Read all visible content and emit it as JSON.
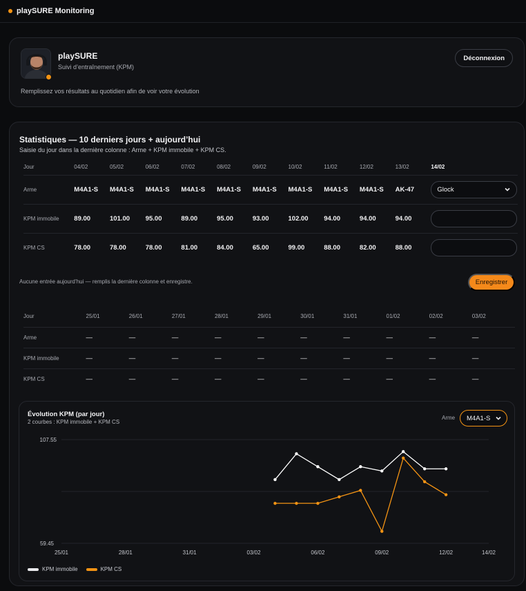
{
  "app": {
    "title": "playSURE Monitoring"
  },
  "profile": {
    "name": "playSURE",
    "subtitle": "Suivi d’entraînement (KPM)",
    "hint": "Remplissez vos résultats au quotidien afin de voir votre évolution",
    "logout_label": "Déconnexion"
  },
  "stats": {
    "title": "Statistiques — 10 derniers jours + aujourd’hui",
    "subtitle": "Saisie du jour dans la dernière colonne : Arme + KPM immobile + KPM CS.",
    "row_labels": {
      "day": "Jour",
      "weapon": "Arme",
      "kpm_static": "KPM immobile",
      "kpm_cs": "KPM CS"
    },
    "table1": {
      "days": [
        "04/02",
        "05/02",
        "06/02",
        "07/02",
        "08/02",
        "09/02",
        "10/02",
        "11/02",
        "12/02",
        "13/02"
      ],
      "today": "14/02",
      "weapons": [
        "M4A1-S",
        "M4A1-S",
        "M4A1-S",
        "M4A1-S",
        "M4A1-S",
        "M4A1-S",
        "M4A1-S",
        "M4A1-S",
        "M4A1-S",
        "AK-47"
      ],
      "kpm_static": [
        "89.00",
        "101.00",
        "95.00",
        "89.00",
        "95.00",
        "93.00",
        "102.00",
        "94.00",
        "94.00",
        "94.00"
      ],
      "kpm_cs": [
        "78.00",
        "78.00",
        "78.00",
        "81.00",
        "84.00",
        "65.00",
        "99.00",
        "88.00",
        "82.00",
        "88.00"
      ],
      "today_weapon": "Glock",
      "today_kpm_static": "",
      "today_kpm_cs": ""
    },
    "message": "Aucune entrée aujourd’hui — remplis la dernière colonne et enregistre.",
    "save_label": "Enregistrer",
    "table2": {
      "days": [
        "25/01",
        "26/01",
        "27/01",
        "28/01",
        "29/01",
        "30/01",
        "31/01",
        "01/02",
        "02/02",
        "03/02"
      ],
      "empty": "—"
    }
  },
  "chart": {
    "title": "Évolution KPM (par jour)",
    "subtitle": "2 courbes : KPM immobile + KPM CS",
    "weapon_label": "Arme",
    "weapon_value": "M4A1-S"
  },
  "colors": {
    "accent": "#f5891a",
    "series_static": "#ffffff",
    "series_cs": "#f39314"
  },
  "chart_data": {
    "type": "line",
    "ylim": [
      59.45,
      107.55
    ],
    "y_tick_labels": [
      "107.55",
      "59.45"
    ],
    "x_ticks": [
      "25/01",
      "28/01",
      "31/01",
      "03/02",
      "06/02",
      "09/02",
      "12/02",
      "14/02"
    ],
    "x_dates": [
      "25/01",
      "26/01",
      "27/01",
      "28/01",
      "29/01",
      "30/01",
      "31/01",
      "01/02",
      "02/02",
      "03/02",
      "04/02",
      "05/02",
      "06/02",
      "07/02",
      "08/02",
      "09/02",
      "10/02",
      "11/02",
      "12/02",
      "13/02",
      "14/02"
    ],
    "series": [
      {
        "name": "KPM immobile",
        "x": [
          "04/02",
          "05/02",
          "06/02",
          "07/02",
          "08/02",
          "09/02",
          "10/02",
          "11/02",
          "12/02"
        ],
        "values": [
          89,
          101,
          95,
          89,
          95,
          93,
          102,
          94,
          94
        ]
      },
      {
        "name": "KPM CS",
        "x": [
          "04/02",
          "05/02",
          "06/02",
          "07/02",
          "08/02",
          "09/02",
          "10/02",
          "11/02",
          "12/02"
        ],
        "values": [
          78,
          78,
          78,
          81,
          84,
          65,
          99,
          88,
          82
        ]
      }
    ],
    "legend": "bottom-left",
    "grid": true
  }
}
